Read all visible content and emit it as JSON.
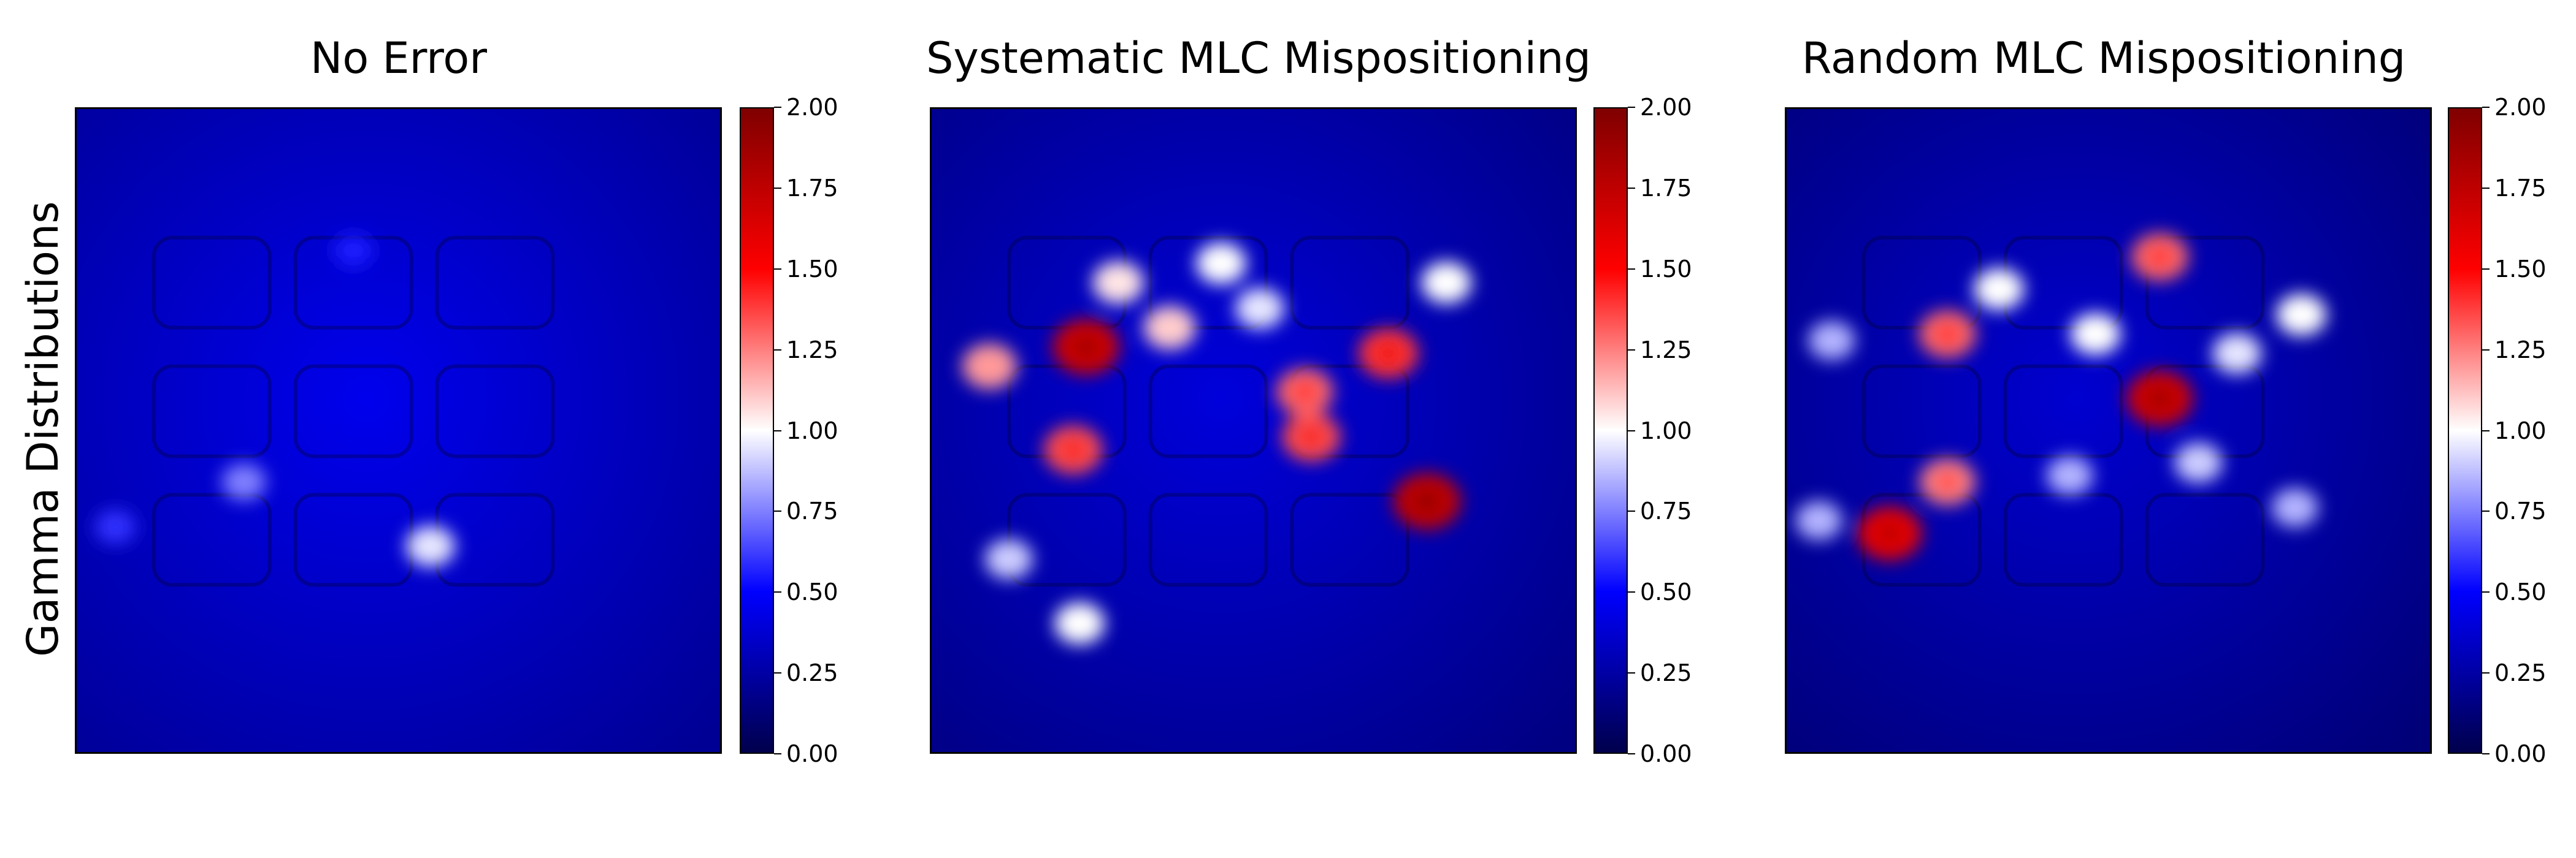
{
  "chart_data": [
    {
      "type": "heatmap",
      "title": "No Error",
      "ylabel": "Gamma Distributions",
      "colorbar": {
        "range": [
          0,
          2
        ],
        "ticks": [
          "0.00",
          "0.25",
          "0.50",
          "0.75",
          "1.00",
          "1.25",
          "1.50",
          "1.75",
          "2.00"
        ]
      },
      "colormap": [
        "#00004c",
        "#0000ff",
        "#ffffff",
        "#ff0000",
        "#7f0000"
      ],
      "background_level": 0.3,
      "hotspots": [
        {
          "x": 0.55,
          "y": 0.68,
          "value": 0.95
        },
        {
          "x": 0.26,
          "y": 0.58,
          "value": 0.75
        },
        {
          "x": 0.06,
          "y": 0.65,
          "value": 0.6
        },
        {
          "x": 0.43,
          "y": 0.22,
          "value": 0.55
        }
      ]
    },
    {
      "type": "heatmap",
      "title": "Systematic MLC Mispositioning",
      "colorbar": {
        "range": [
          0,
          2
        ],
        "ticks": [
          "0.00",
          "0.25",
          "0.50",
          "0.75",
          "1.00",
          "1.25",
          "1.50",
          "1.75",
          "2.00"
        ]
      },
      "colormap": [
        "#00004c",
        "#0000ff",
        "#ffffff",
        "#ff0000",
        "#7f0000"
      ],
      "background_level": 0.25,
      "hotspots": [
        {
          "x": 0.24,
          "y": 0.37,
          "value": 1.7
        },
        {
          "x": 0.09,
          "y": 0.4,
          "value": 1.2
        },
        {
          "x": 0.22,
          "y": 0.53,
          "value": 1.35
        },
        {
          "x": 0.37,
          "y": 0.34,
          "value": 1.1
        },
        {
          "x": 0.71,
          "y": 0.38,
          "value": 1.4
        },
        {
          "x": 0.58,
          "y": 0.44,
          "value": 1.3
        },
        {
          "x": 0.59,
          "y": 0.51,
          "value": 1.35
        },
        {
          "x": 0.77,
          "y": 0.61,
          "value": 1.75
        },
        {
          "x": 0.29,
          "y": 0.27,
          "value": 1.05
        },
        {
          "x": 0.45,
          "y": 0.24,
          "value": 1.0
        },
        {
          "x": 0.51,
          "y": 0.31,
          "value": 0.95
        },
        {
          "x": 0.8,
          "y": 0.27,
          "value": 1.0
        },
        {
          "x": 0.12,
          "y": 0.7,
          "value": 0.9
        },
        {
          "x": 0.23,
          "y": 0.8,
          "value": 1.0
        }
      ]
    },
    {
      "type": "heatmap",
      "title": "Random MLC Mispositioning",
      "colorbar": {
        "range": [
          0,
          2
        ],
        "ticks": [
          "0.00",
          "0.25",
          "0.50",
          "0.75",
          "1.00",
          "1.25",
          "1.50",
          "1.75",
          "2.00"
        ]
      },
      "colormap": [
        "#00004c",
        "#0000ff",
        "#ffffff",
        "#ff0000",
        "#7f0000"
      ],
      "background_level": 0.22,
      "hotspots": [
        {
          "x": 0.16,
          "y": 0.66,
          "value": 1.6
        },
        {
          "x": 0.58,
          "y": 0.45,
          "value": 1.7
        },
        {
          "x": 0.58,
          "y": 0.23,
          "value": 1.3
        },
        {
          "x": 0.25,
          "y": 0.35,
          "value": 1.3
        },
        {
          "x": 0.25,
          "y": 0.58,
          "value": 1.25
        },
        {
          "x": 0.33,
          "y": 0.28,
          "value": 1.0
        },
        {
          "x": 0.48,
          "y": 0.35,
          "value": 1.0
        },
        {
          "x": 0.7,
          "y": 0.38,
          "value": 0.95
        },
        {
          "x": 0.8,
          "y": 0.32,
          "value": 1.0
        },
        {
          "x": 0.07,
          "y": 0.36,
          "value": 0.85
        },
        {
          "x": 0.05,
          "y": 0.64,
          "value": 0.85
        },
        {
          "x": 0.64,
          "y": 0.55,
          "value": 0.9
        },
        {
          "x": 0.79,
          "y": 0.62,
          "value": 0.85
        },
        {
          "x": 0.44,
          "y": 0.57,
          "value": 0.85
        }
      ]
    }
  ]
}
